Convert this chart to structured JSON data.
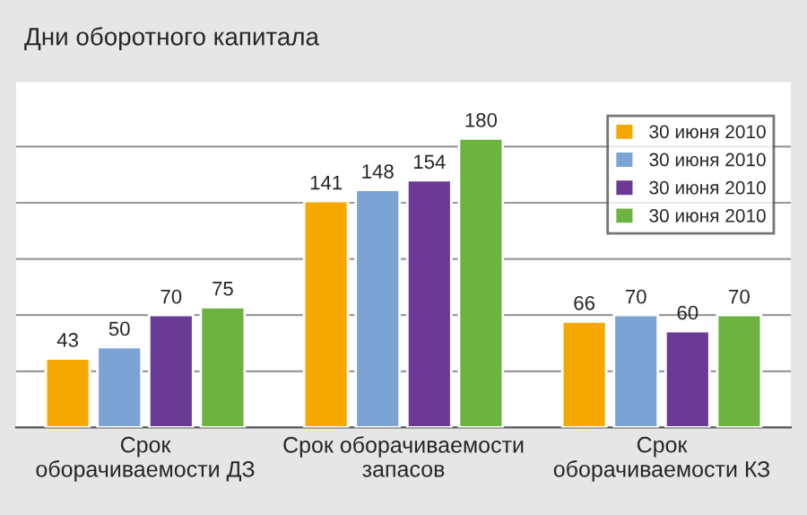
{
  "chart_data": {
    "type": "bar",
    "title": "Дни оборотного капитала",
    "categories": [
      "Срок\nоборачиваемости ДЗ",
      "Срок оборачиваемости\nзапасов",
      "Срок\nоборачиваемости КЗ"
    ],
    "series": [
      {
        "name": "30 июня 2010",
        "color": "#f5a800",
        "values": [
          43,
          141,
          66
        ]
      },
      {
        "name": "30 июня 2010",
        "color": "#7ba3d4",
        "values": [
          50,
          148,
          70
        ]
      },
      {
        "name": "30 июня 2010",
        "color": "#6a3a94",
        "values": [
          70,
          154,
          60
        ]
      },
      {
        "name": "30 июня 2010",
        "color": "#6cb33f",
        "values": [
          75,
          180,
          70
        ]
      }
    ],
    "ylim": [
      0,
      215
    ],
    "yticks": [
      {
        "value": 35,
        "label": null
      },
      {
        "value": 70,
        "label": null
      },
      {
        "value": 105,
        "label": null
      },
      {
        "value": 140,
        "label": null
      },
      {
        "value": 175,
        "label": null
      }
    ],
    "grid": "y",
    "legend": "top right",
    "data_labels": true
  }
}
